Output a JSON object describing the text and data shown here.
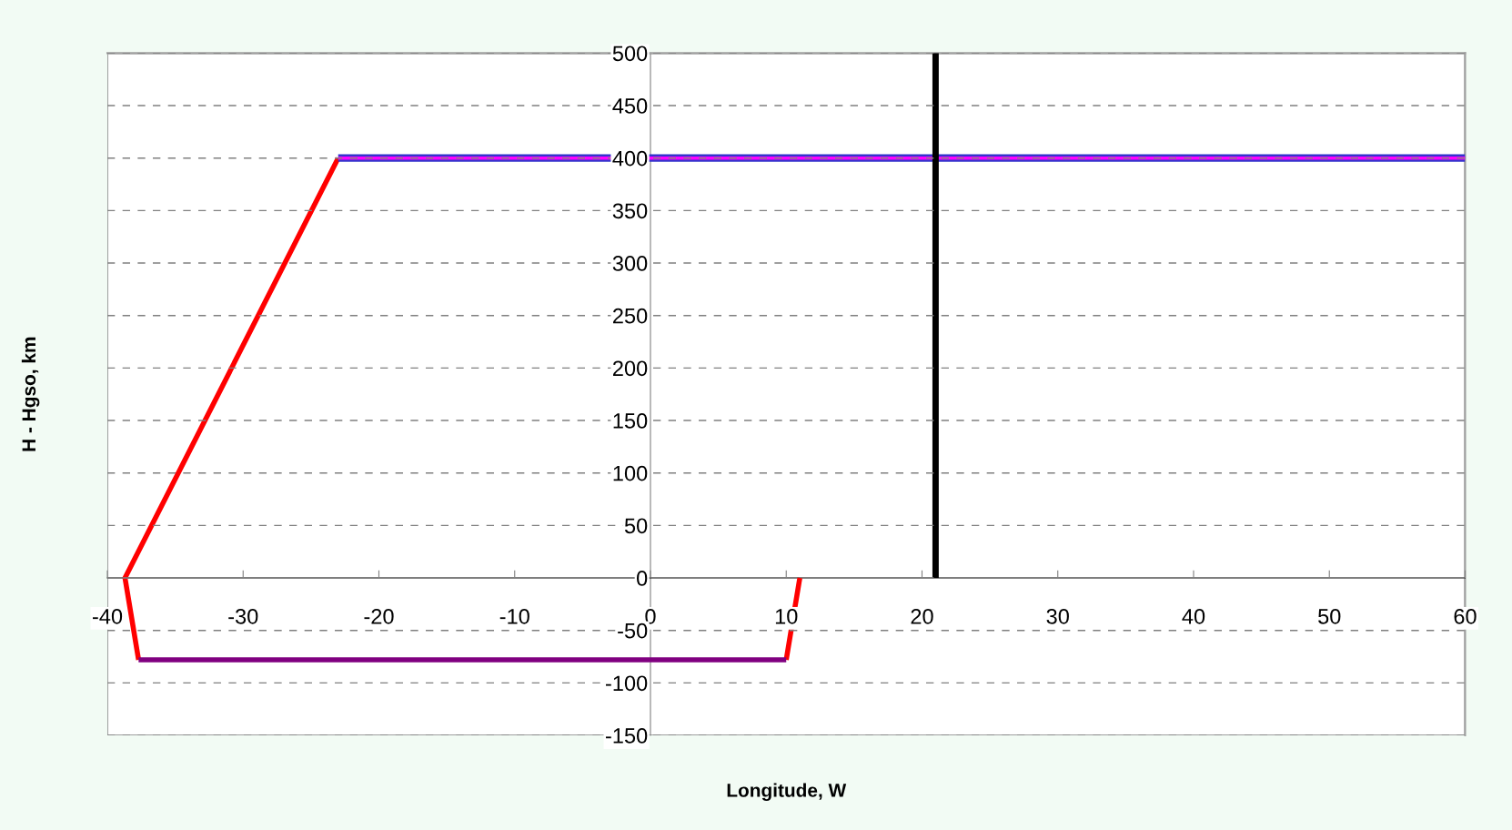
{
  "chart_data": {
    "type": "line",
    "xlabel": "Longitude, W",
    "ylabel": "H - Hgso, km",
    "xlim": [
      -40,
      60
    ],
    "xticks": [
      -40,
      -30,
      -20,
      -10,
      0,
      10,
      20,
      30,
      40,
      50,
      60
    ],
    "ylim": [
      -150,
      500
    ],
    "yticks": [
      -150,
      -100,
      -50,
      0,
      50,
      100,
      150,
      200,
      250,
      300,
      350,
      400,
      450,
      500
    ],
    "grid": "y",
    "marker": "none",
    "line_style": "solid",
    "series": [
      {
        "color": "#ff0000",
        "x": [
          -23,
          -38.7,
          -37.7,
          null,
          10,
          11
        ],
        "values": [
          400,
          0,
          -78,
          null,
          -78,
          0
        ]
      },
      {
        "color": "#800080",
        "x": [
          -37.7,
          10
        ],
        "values": [
          -78,
          -78
        ]
      },
      {
        "color": "#3333cc",
        "x": [
          -23,
          60
        ],
        "values": [
          400,
          400
        ]
      },
      {
        "color": "#ff00ff",
        "x": [
          -23,
          60
        ],
        "values": [
          400,
          400
        ]
      },
      {
        "color": "#000000",
        "x": [
          21,
          21
        ],
        "values": [
          0,
          500
        ]
      }
    ]
  }
}
